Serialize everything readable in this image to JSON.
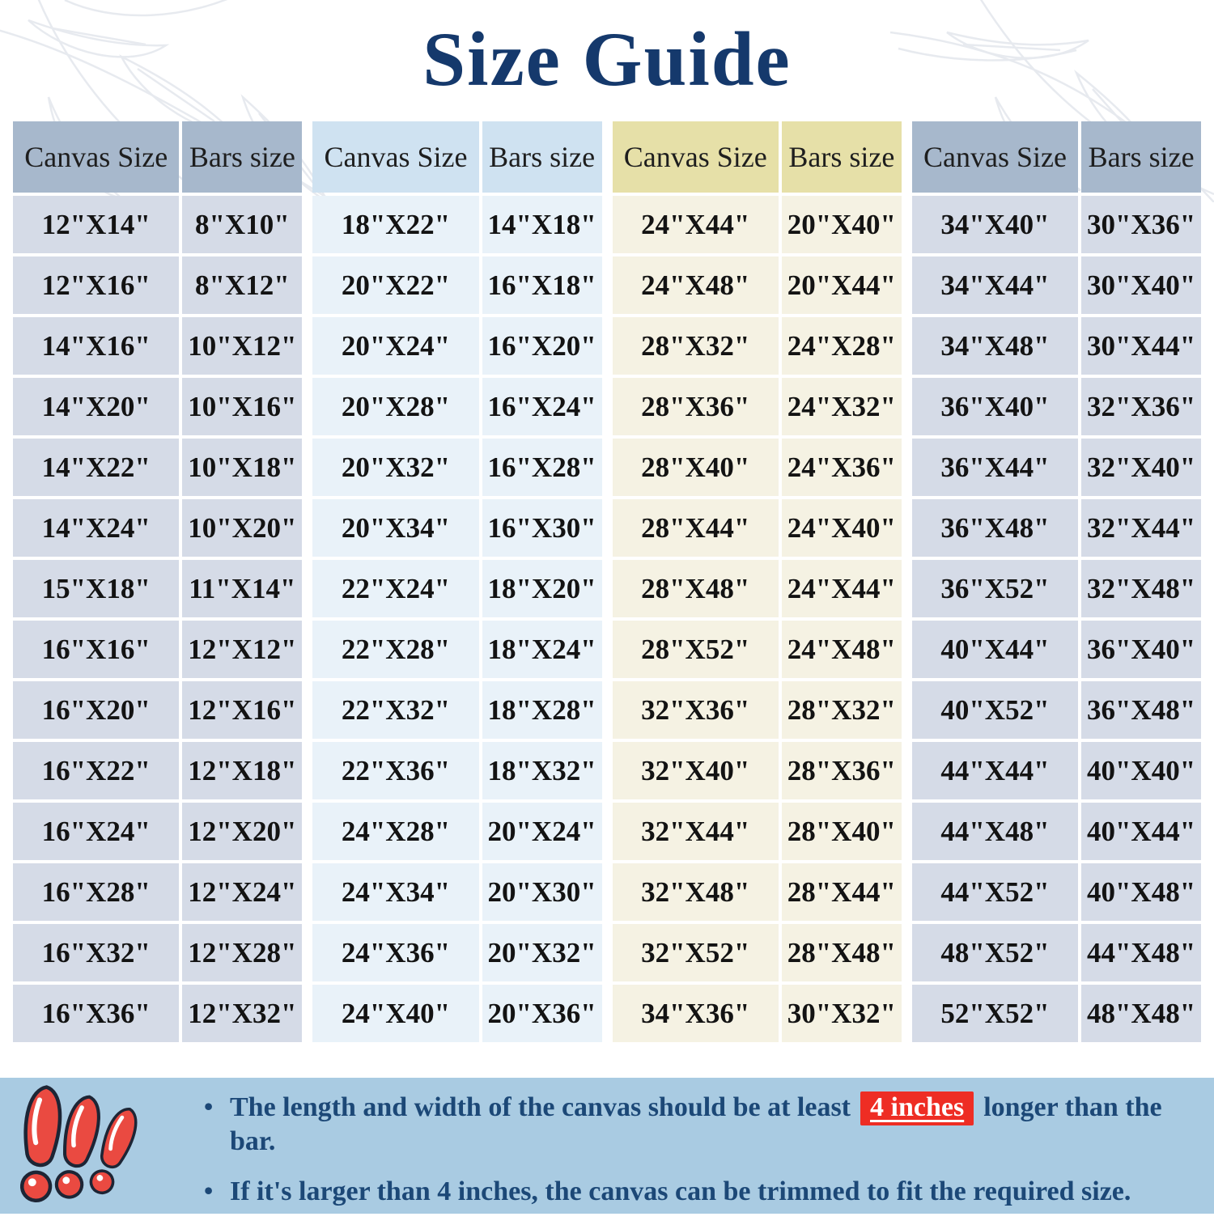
{
  "title": "Size Guide",
  "columns": [
    "Canvas Size",
    "Bars size"
  ],
  "tables": [
    {
      "theme": "slate",
      "rows": [
        [
          "12\"X14\"",
          "8\"X10\""
        ],
        [
          "12\"X16\"",
          "8\"X12\""
        ],
        [
          "14\"X16\"",
          "10\"X12\""
        ],
        [
          "14\"X20\"",
          "10\"X16\""
        ],
        [
          "14\"X22\"",
          "10\"X18\""
        ],
        [
          "14\"X24\"",
          "10\"X20\""
        ],
        [
          "15\"X18\"",
          "11\"X14\""
        ],
        [
          "16\"X16\"",
          "12\"X12\""
        ],
        [
          "16\"X20\"",
          "12\"X16\""
        ],
        [
          "16\"X22\"",
          "12\"X18\""
        ],
        [
          "16\"X24\"",
          "12\"X20\""
        ],
        [
          "16\"X28\"",
          "12\"X24\""
        ],
        [
          "16\"X32\"",
          "12\"X28\""
        ],
        [
          "16\"X36\"",
          "12\"X32\""
        ]
      ]
    },
    {
      "theme": "blue",
      "rows": [
        [
          "18\"X22\"",
          "14\"X18\""
        ],
        [
          "20\"X22\"",
          "16\"X18\""
        ],
        [
          "20\"X24\"",
          "16\"X20\""
        ],
        [
          "20\"X28\"",
          "16\"X24\""
        ],
        [
          "20\"X32\"",
          "16\"X28\""
        ],
        [
          "20\"X34\"",
          "16\"X30\""
        ],
        [
          "22\"X24\"",
          "18\"X20\""
        ],
        [
          "22\"X28\"",
          "18\"X24\""
        ],
        [
          "22\"X32\"",
          "18\"X28\""
        ],
        [
          "22\"X36\"",
          "18\"X32\""
        ],
        [
          "24\"X28\"",
          "20\"X24\""
        ],
        [
          "24\"X34\"",
          "20\"X30\""
        ],
        [
          "24\"X36\"",
          "20\"X32\""
        ],
        [
          "24\"X40\"",
          "20\"X36\""
        ]
      ]
    },
    {
      "theme": "khaki",
      "rows": [
        [
          "24\"X44\"",
          "20\"X40\""
        ],
        [
          "24\"X48\"",
          "20\"X44\""
        ],
        [
          "28\"X32\"",
          "24\"X28\""
        ],
        [
          "28\"X36\"",
          "24\"X32\""
        ],
        [
          "28\"X40\"",
          "24\"X36\""
        ],
        [
          "28\"X44\"",
          "24\"X40\""
        ],
        [
          "28\"X48\"",
          "24\"X44\""
        ],
        [
          "28\"X52\"",
          "24\"X48\""
        ],
        [
          "32\"X36\"",
          "28\"X32\""
        ],
        [
          "32\"X40\"",
          "28\"X36\""
        ],
        [
          "32\"X44\"",
          "28\"X40\""
        ],
        [
          "32\"X48\"",
          "28\"X44\""
        ],
        [
          "32\"X52\"",
          "28\"X48\""
        ],
        [
          "34\"X36\"",
          "30\"X32\""
        ]
      ]
    },
    {
      "theme": "slate",
      "rows": [
        [
          "34\"X40\"",
          "30\"X36\""
        ],
        [
          "34\"X44\"",
          "30\"X40\""
        ],
        [
          "34\"X48\"",
          "30\"X44\""
        ],
        [
          "36\"X40\"",
          "32\"X36\""
        ],
        [
          "36\"X44\"",
          "32\"X40\""
        ],
        [
          "36\"X48\"",
          "32\"X44\""
        ],
        [
          "36\"X52\"",
          "32\"X48\""
        ],
        [
          "40\"X44\"",
          "36\"X40\""
        ],
        [
          "40\"X52\"",
          "36\"X48\""
        ],
        [
          "44\"X44\"",
          "40\"X40\""
        ],
        [
          "44\"X48\"",
          "40\"X44\""
        ],
        [
          "44\"X52\"",
          "40\"X48\""
        ],
        [
          "48\"X52\"",
          "44\"X48\""
        ],
        [
          "52\"X52\"",
          "48\"X48\""
        ]
      ]
    }
  ],
  "notes_bullet": "•",
  "notes": [
    {
      "pre": "The length and width of the canvas should be at least",
      "highlight": "4 inches",
      "post": "longer than the bar."
    },
    {
      "pre": "If it's larger than 4 inches, the canvas can be trimmed to fit the required size.",
      "highlight": "",
      "post": ""
    }
  ],
  "colors": {
    "title": "#15396c",
    "note_text": "#1c4877",
    "highlight_bg": "#ee2d24",
    "highlight_text": "#ffffff",
    "footer_bg": "#a9cbe2",
    "slate_header": "#a7b8cc",
    "slate_row": "#d5dbe7",
    "blue_header": "#cfe2f1",
    "blue_row": "#e9f2f9",
    "khaki_header": "#e6e0a8",
    "khaki_row": "#f5f2e3",
    "alert_red": "#ea4a41",
    "alert_outline": "#1d2535"
  }
}
